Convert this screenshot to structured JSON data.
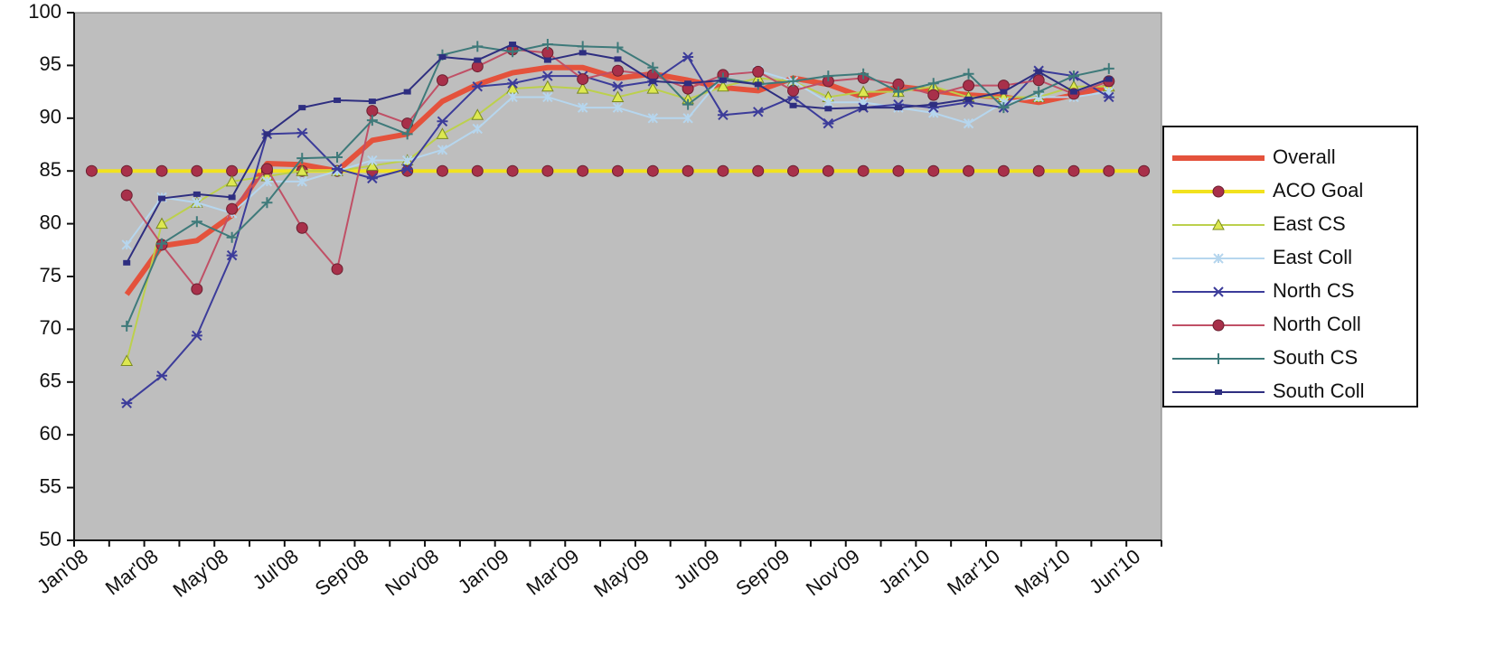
{
  "chart_data": {
    "type": "line",
    "categories": [
      "Jan'08",
      null,
      "Mar'08",
      null,
      "May'08",
      null,
      "Jul'08",
      null,
      "Sep'08",
      null,
      "Nov'08",
      null,
      "Jan'09",
      null,
      "Mar'09",
      null,
      "May'09",
      null,
      "Jul'09",
      null,
      "Sep'09",
      null,
      "Nov'09",
      null,
      "Jan'10",
      null,
      "Mar'10",
      null,
      "May'10",
      null,
      "Jun'10"
    ],
    "ylim": [
      50,
      100
    ],
    "yticks": [
      50,
      55,
      60,
      65,
      70,
      75,
      80,
      85,
      90,
      95,
      100
    ],
    "legend": "right",
    "background": "#bebebe",
    "series": [
      {
        "name": "Overall",
        "color": "#e4523c",
        "marker": "none",
        "values": [
          null,
          73.3,
          77.9,
          78.4,
          80.8,
          85.7,
          85.6,
          85.0,
          87.9,
          88.5,
          91.6,
          93.2,
          94.3,
          94.8,
          94.8,
          93.8,
          94.2,
          93.6,
          92.9,
          92.6,
          93.8,
          93.2,
          92.0,
          93.0,
          92.6,
          92.2,
          92.0,
          91.5,
          92.2,
          93.0,
          null
        ]
      },
      {
        "name": "ACO Goal",
        "color": "#f2e21e",
        "marker": "circle",
        "marker_color": "#a8304a",
        "values": [
          85,
          85,
          85,
          85,
          85,
          85,
          85,
          85,
          85,
          85,
          85,
          85,
          85,
          85,
          85,
          85,
          85,
          85,
          85,
          85,
          85,
          85,
          85,
          85,
          85,
          85,
          85,
          85,
          85,
          85,
          85
        ]
      },
      {
        "name": "East CS",
        "color": "#bcd04c",
        "marker": "triangle",
        "marker_color": "#dde850",
        "values": [
          null,
          67,
          80,
          82,
          84,
          84.5,
          85,
          85,
          85.5,
          86,
          88.5,
          90.3,
          92.8,
          93,
          92.8,
          92,
          92.8,
          91.8,
          93,
          93.8,
          93.5,
          92,
          92.5,
          92.5,
          93,
          92,
          92,
          92,
          93,
          93,
          null
        ]
      },
      {
        "name": "East Coll",
        "color": "#b6d6ee",
        "marker": "asterisk",
        "marker_color": "#b6d6ee",
        "values": [
          null,
          78,
          82.5,
          82,
          81,
          84,
          84,
          85,
          86,
          86,
          87,
          89,
          92,
          92,
          91,
          91,
          90,
          90,
          94,
          94.5,
          93.5,
          91.5,
          91.5,
          91,
          90.5,
          89.5,
          91.5,
          92,
          92,
          92.5,
          null
        ]
      },
      {
        "name": "North CS",
        "color": "#3c3c9a",
        "marker": "star",
        "marker_color": "#3c3c9a",
        "values": [
          null,
          63,
          65.6,
          69.4,
          77,
          88.5,
          88.6,
          85.2,
          84.3,
          85.2,
          89.7,
          93,
          93.3,
          94,
          94,
          93,
          93.5,
          95.8,
          90.3,
          90.6,
          92,
          89.5,
          91,
          91.3,
          91,
          91.5,
          91,
          94.5,
          94,
          92,
          null
        ]
      },
      {
        "name": "North Coll",
        "color": "#c05066",
        "marker": "circle",
        "marker_color": "#a8304a",
        "values": [
          null,
          82.7,
          78,
          73.8,
          81.4,
          85.2,
          79.6,
          75.7,
          90.7,
          89.5,
          93.6,
          94.9,
          96.5,
          96.2,
          93.7,
          94.5,
          94.1,
          92.8,
          94.1,
          94.4,
          92.6,
          93.5,
          93.8,
          93.2,
          92.2,
          93.1,
          93.1,
          93.6,
          92.3,
          93.5,
          null
        ]
      },
      {
        "name": "South CS",
        "color": "#3e7a7a",
        "marker": "plus",
        "marker_color": "#3e7a7a",
        "values": [
          null,
          70.3,
          78.1,
          80.2,
          78.7,
          82,
          86.2,
          86.3,
          89.8,
          88.5,
          96,
          96.8,
          96.3,
          97,
          96.8,
          96.7,
          94.8,
          91.3,
          93.8,
          93.2,
          93.5,
          94,
          94.2,
          92.5,
          93.3,
          94.2,
          91,
          92.5,
          94,
          94.7,
          null
        ]
      },
      {
        "name": "South Coll",
        "color": "#2e2e80",
        "marker": "square",
        "marker_color": "#2e2e80",
        "values": [
          null,
          76.3,
          82.4,
          82.8,
          82.5,
          88.5,
          91,
          91.7,
          91.6,
          92.5,
          95.8,
          95.5,
          97,
          95.5,
          96.2,
          95.6,
          93.5,
          93.3,
          93.6,
          93.2,
          91.2,
          90.9,
          91,
          91,
          91.3,
          91.8,
          92.5,
          94.4,
          92.5,
          93.7,
          null
        ]
      }
    ]
  }
}
